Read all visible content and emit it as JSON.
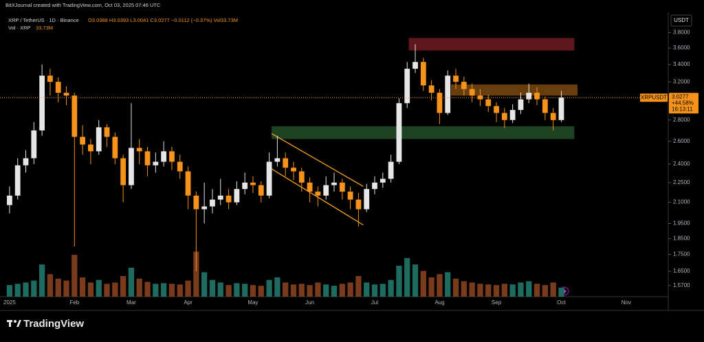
{
  "header": {
    "watermark": "BitXJournal created with TradingView.com, Oct 03, 2025 07:46 UTC",
    "symbol": "XRP / TetherUS · 1D · Binance",
    "ohlc": "O3.0388 H3.0393 L3.0041 C3.0277 −0.0112 (−0.37%) Vol33.73M",
    "volume_label": "Vol · XRP",
    "volume_value": "33.73M",
    "currency": "USDT"
  },
  "footer": {
    "brand": "TradingView"
  },
  "chart_data": {
    "type": "candlestick",
    "categories": [
      "2025",
      null,
      null,
      null,
      null,
      null,
      null,
      null,
      "Feb",
      null,
      null,
      null,
      null,
      null,
      null,
      "Mar",
      null,
      null,
      null,
      null,
      null,
      null,
      "Apr",
      null,
      null,
      null,
      null,
      null,
      null,
      null,
      "May",
      null,
      null,
      null,
      null,
      null,
      null,
      "Jun",
      null,
      null,
      null,
      null,
      null,
      null,
      null,
      "Jul",
      null,
      null,
      null,
      null,
      null,
      null,
      null,
      "Aug",
      null,
      null,
      null,
      null,
      null,
      null,
      "Sep",
      null,
      null,
      null,
      null,
      null,
      null,
      null,
      "Oct",
      null,
      null,
      null,
      null,
      null,
      null,
      null,
      "Nov",
      null,
      null,
      null,
      null
    ],
    "open": [
      2.08,
      2.15,
      2.39,
      2.45,
      2.7,
      3.27,
      3.2,
      3.08,
      3.05,
      2.64,
      2.57,
      2.51,
      2.73,
      2.64,
      2.45,
      2.23,
      2.54,
      2.51,
      2.39,
      2.42,
      2.51,
      2.42,
      2.34,
      2.15,
      2.05,
      2.07,
      2.12,
      2.15,
      2.1,
      2.2,
      2.25,
      2.23,
      2.15,
      2.42,
      2.45,
      2.37,
      2.34,
      2.25,
      2.18,
      2.15,
      2.23,
      2.25,
      2.18,
      2.12,
      2.05,
      2.2,
      2.25,
      2.28,
      2.42,
      2.97,
      3.35,
      3.43,
      3.16,
      3.08,
      2.87,
      3.27,
      3.2,
      3.12,
      3.05,
      3.01,
      2.94,
      2.87,
      2.8,
      2.9,
      3.01,
      3.08,
      3.01,
      2.87,
      2.8,
      null,
      null,
      null,
      null,
      null,
      null,
      null,
      null,
      null,
      null,
      null,
      null
    ],
    "high": [
      2.22,
      2.45,
      2.52,
      2.78,
      3.4,
      3.35,
      3.25,
      3.15,
      3.08,
      2.75,
      2.62,
      2.8,
      2.76,
      2.68,
      2.48,
      2.97,
      2.62,
      2.55,
      2.5,
      2.6,
      2.55,
      2.48,
      2.38,
      2.18,
      2.25,
      2.2,
      2.28,
      2.2,
      2.26,
      2.33,
      2.3,
      2.26,
      2.5,
      2.65,
      2.5,
      2.42,
      2.37,
      2.29,
      2.22,
      2.3,
      2.33,
      2.28,
      2.22,
      2.17,
      2.24,
      2.3,
      2.33,
      2.48,
      3.02,
      3.43,
      3.65,
      3.48,
      3.22,
      3.12,
      3.33,
      3.35,
      3.26,
      3.18,
      3.12,
      3.06,
      2.98,
      2.92,
      2.96,
      3.08,
      3.18,
      3.14,
      3.04,
      2.92,
      3.1,
      null,
      null,
      null,
      null,
      null,
      null,
      null,
      null,
      null,
      null,
      null,
      null
    ],
    "low": [
      2.02,
      2.12,
      2.33,
      2.4,
      2.65,
      3.05,
      2.98,
      2.95,
      1.8,
      2.48,
      2.4,
      2.48,
      2.55,
      2.4,
      2.1,
      2.2,
      2.4,
      2.3,
      2.33,
      2.38,
      2.35,
      2.28,
      2.05,
      1.65,
      1.95,
      2.02,
      2.08,
      2.05,
      2.08,
      2.16,
      2.17,
      2.1,
      2.13,
      2.38,
      2.3,
      2.27,
      2.18,
      2.1,
      2.07,
      2.12,
      2.18,
      2.12,
      2.05,
      1.93,
      2.03,
      2.16,
      2.21,
      2.25,
      2.4,
      2.92,
      3.3,
      3.1,
      3.0,
      2.76,
      2.85,
      3.12,
      3.05,
      2.98,
      2.94,
      2.88,
      2.78,
      2.72,
      2.77,
      2.86,
      2.97,
      2.95,
      2.8,
      2.7,
      2.78,
      null,
      null,
      null,
      null,
      null,
      null,
      null,
      null,
      null,
      null,
      null,
      null
    ],
    "close": [
      2.15,
      2.39,
      2.45,
      2.7,
      3.27,
      3.2,
      3.08,
      3.05,
      2.64,
      2.57,
      2.51,
      2.73,
      2.64,
      2.45,
      2.23,
      2.54,
      2.51,
      2.39,
      2.42,
      2.51,
      2.42,
      2.34,
      2.15,
      2.05,
      2.07,
      2.12,
      2.15,
      2.1,
      2.2,
      2.25,
      2.23,
      2.15,
      2.42,
      2.45,
      2.37,
      2.34,
      2.25,
      2.18,
      2.15,
      2.23,
      2.25,
      2.18,
      2.12,
      2.05,
      2.2,
      2.25,
      2.28,
      2.42,
      2.97,
      3.35,
      3.43,
      3.16,
      3.08,
      2.87,
      3.27,
      3.2,
      3.12,
      3.05,
      3.01,
      2.94,
      2.87,
      2.8,
      2.9,
      3.01,
      3.08,
      3.01,
      2.87,
      2.8,
      3.03,
      null,
      null,
      null,
      null,
      null,
      null,
      null,
      null,
      null,
      null,
      null,
      null
    ],
    "volume": [
      1800,
      2000,
      2200,
      2500,
      5000,
      3500,
      2800,
      2500,
      6500,
      3000,
      2200,
      2600,
      2000,
      2200,
      3200,
      4500,
      2800,
      2300,
      2000,
      2100,
      2000,
      1900,
      2500,
      7000,
      3800,
      2600,
      2200,
      1800,
      2100,
      2000,
      1800,
      1700,
      2600,
      3000,
      2200,
      1900,
      2000,
      1800,
      2200,
      1900,
      1700,
      2000,
      2200,
      3200,
      2200,
      1900,
      2000,
      2600,
      4800,
      6000,
      5000,
      4000,
      3000,
      3500,
      3800,
      2800,
      2400,
      2200,
      2000,
      1900,
      1800,
      2000,
      1900,
      2200,
      2400,
      2000,
      1800,
      2200,
      1400,
      null,
      null,
      null,
      null,
      null,
      null,
      null,
      null,
      null,
      null,
      null,
      null
    ],
    "volume_ylim": [
      0,
      8000
    ],
    "up_color": "#e6e6e6",
    "down_color": "#f7931a",
    "volume_up_color": "#1e6b60",
    "volume_down_color": "#7a3b1c",
    "log_scale": true,
    "grid": false,
    "ylim": [
      1.51,
      4.06
    ],
    "yticks": [
      {
        "value": 1.57,
        "label": "1.5700"
      },
      {
        "value": 1.65,
        "label": "1.6500"
      },
      {
        "value": 1.75,
        "label": "1.7500"
      },
      {
        "value": 1.85,
        "label": "1.8500"
      },
      {
        "value": 1.95,
        "label": "1.9500"
      },
      {
        "value": 2.1,
        "label": "2.1000"
      },
      {
        "value": 2.25,
        "label": "2.2500"
      },
      {
        "value": 2.4,
        "label": "2.4000"
      },
      {
        "value": 2.6,
        "label": "2.6000"
      },
      {
        "value": 2.8,
        "label": "2.8000"
      },
      {
        "value": 3.2,
        "label": "3.2000"
      },
      {
        "value": 3.4,
        "label": "3.4000"
      },
      {
        "value": 3.6,
        "label": "3.6000"
      },
      {
        "value": 3.8,
        "label": "3.8000"
      }
    ],
    "last_price": 3.0277,
    "price_tag": {
      "symbol": "XRPUSDT",
      "change": "+44.58%",
      "countdown": "16:13:11"
    },
    "zones": [
      {
        "lo": 3.57,
        "hi": 3.73,
        "color": "#6e1a24"
      },
      {
        "lo": 3.05,
        "hi": 3.17,
        "color": "#7a4a0e"
      },
      {
        "lo": 2.62,
        "hi": 2.74,
        "color": "#214d27"
      }
    ],
    "channel": [
      {
        "from": 2.67,
        "to": 2.22
      },
      {
        "from": 2.36,
        "to": 1.94
      }
    ]
  }
}
